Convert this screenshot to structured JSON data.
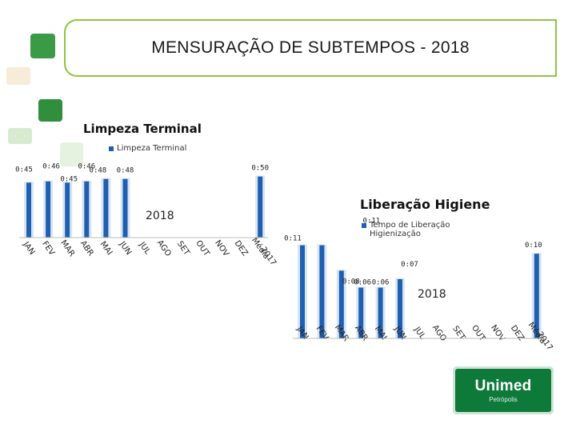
{
  "header": {
    "title": "MENSURAÇÃO DE SUBTEMPOS - 2018"
  },
  "colors": {
    "bar": "#1f5fb0",
    "bar_highlight": "#d8e4f4",
    "brand_green": "#0d7a3a",
    "green_light": "#8cc63f",
    "green_mid": "#2e8b3e"
  },
  "chart_data": [
    {
      "type": "bar",
      "title": "Limpeza Terminal",
      "legend": "Limpeza Terminal",
      "series_name": "Limpeza Terminal",
      "year_label": "2018",
      "categories": [
        "JAN",
        "FEV",
        "MAR",
        "ABR",
        "MAI",
        "JUN",
        "JUL",
        "AGO",
        "SET",
        "OUT",
        "NOV",
        "DEZ",
        "Média 2017"
      ],
      "values": [
        45,
        46,
        45,
        46,
        48,
        48,
        null,
        null,
        null,
        null,
        null,
        null,
        50
      ],
      "labels": [
        "0:45",
        "0:46",
        "0:45",
        "0:46",
        "0:48",
        "0:48",
        "",
        "",
        "",
        "",
        "",
        "",
        "0:50"
      ],
      "ylim": [
        0,
        55
      ]
    },
    {
      "type": "bar",
      "title": "Liberação Higiene",
      "legend": "Tempo de Liberação Higienização",
      "series_name": "Tempo de Liberação Higienização",
      "year_label": "2018",
      "categories": [
        "JAN",
        "FEV",
        "MAR",
        "ABR",
        "MAI",
        "JUN",
        "JUL",
        "AGO",
        "SET",
        "OUT",
        "NOV",
        "DEZ",
        "Média 2017"
      ],
      "values": [
        11,
        11,
        8,
        6,
        6,
        7,
        null,
        null,
        null,
        null,
        null,
        null,
        10
      ],
      "labels": [
        "0:11",
        "0:11",
        "0:08",
        "0:06",
        "0:06",
        "0:07",
        "",
        "",
        "",
        "",
        "",
        "",
        "0:10"
      ],
      "ylim": [
        0,
        12
      ]
    }
  ],
  "logo": {
    "name": "Unimed",
    "city": "Petrópolis"
  }
}
